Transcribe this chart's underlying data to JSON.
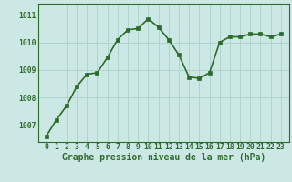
{
  "x": [
    0,
    1,
    2,
    3,
    4,
    5,
    6,
    7,
    8,
    9,
    10,
    11,
    12,
    13,
    14,
    15,
    16,
    17,
    18,
    19,
    20,
    21,
    22,
    23
  ],
  "y": [
    1006.6,
    1007.2,
    1007.7,
    1008.4,
    1008.85,
    1008.9,
    1009.45,
    1010.1,
    1010.45,
    1010.5,
    1010.85,
    1010.55,
    1010.1,
    1009.55,
    1008.75,
    1008.7,
    1008.9,
    1010.0,
    1010.2,
    1010.2,
    1010.3,
    1010.3,
    1010.2,
    1010.3
  ],
  "line_color": "#2d6a2d",
  "marker": "s",
  "marker_size": 2.2,
  "bg_color": "#cce8e4",
  "grid_color": "#b0d4d0",
  "ylim": [
    1006.4,
    1011.4
  ],
  "yticks": [
    1007,
    1008,
    1009,
    1010,
    1011
  ],
  "xlabel": "Graphe pression niveau de la mer (hPa)",
  "tick_fontsize": 5.8,
  "xlabel_fontsize": 7.0,
  "line_width": 1.2
}
